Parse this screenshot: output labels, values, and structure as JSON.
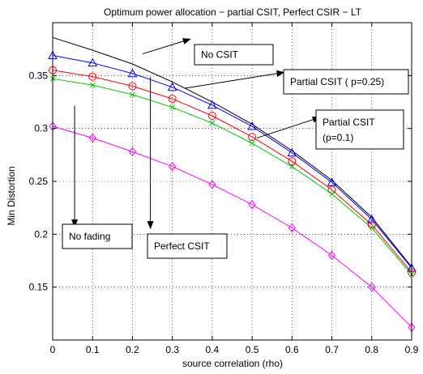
{
  "chart_data": {
    "type": "line",
    "title": "Optimum power allocation − partial CSIT, Perfect CSIR − LT",
    "xlabel": "source correlation (rho)",
    "ylabel": "Min Distortion",
    "xlim": [
      0,
      0.9
    ],
    "ylim": [
      0.1,
      0.4
    ],
    "xticks": [
      0,
      0.1,
      0.2,
      0.3,
      0.4,
      0.5,
      0.6,
      0.7,
      0.8,
      0.9
    ],
    "xtick_labels": [
      "0",
      "0.1",
      "0.2",
      "0.3",
      "0.4",
      "0.5",
      "0.6",
      "0.7",
      "0.8",
      "0.9"
    ],
    "yticks": [
      0.15,
      0.2,
      0.25,
      0.3,
      0.35
    ],
    "ytick_labels": [
      "0.15",
      "0.2",
      "0.25",
      "0.3",
      "0.35"
    ],
    "grid": true,
    "x": [
      0,
      0.1,
      0.2,
      0.3,
      0.4,
      0.5,
      0.6,
      0.7,
      0.8,
      0.9
    ],
    "series": [
      {
        "name": "No CSIT",
        "color": "#000000",
        "marker": "none",
        "values": [
          0.386,
          0.374,
          0.361,
          0.344,
          0.325,
          0.304,
          0.279,
          0.251,
          0.216,
          0.169
        ]
      },
      {
        "name": "Partial CSIT ( p=0.25)",
        "color": "#0000ff",
        "marker": "triangle",
        "values": [
          0.369,
          0.362,
          0.352,
          0.339,
          0.322,
          0.302,
          0.277,
          0.249,
          0.214,
          0.168
        ]
      },
      {
        "name": "Partial CSIT (p=0.1)",
        "color": "#ff0000",
        "marker": "circle",
        "values": [
          0.355,
          0.349,
          0.34,
          0.328,
          0.312,
          0.292,
          0.269,
          0.242,
          0.209,
          0.164
        ]
      },
      {
        "name": "Perfect CSIT",
        "color": "#00cc00",
        "marker": "x",
        "values": [
          0.347,
          0.341,
          0.332,
          0.32,
          0.305,
          0.286,
          0.264,
          0.238,
          0.206,
          0.162
        ]
      },
      {
        "name": "No fading",
        "color": "#ff00ff",
        "marker": "diamond",
        "values": [
          0.302,
          0.291,
          0.278,
          0.264,
          0.247,
          0.228,
          0.206,
          0.18,
          0.15,
          0.112
        ]
      }
    ],
    "annotations": [
      {
        "text": "No CSIT",
        "series": 0,
        "from_x": 0.225,
        "from_y": 0.3705,
        "to_x": 0.345,
        "to_y": 0.3845
      },
      {
        "text": "Partial CSIT ( p=0.25)",
        "series": 1,
        "from_x": 0.332,
        "from_y": 0.338,
        "to_x": 0.58,
        "to_y": 0.353
      },
      {
        "text": "Partial CSIT (p=0.1)",
        "series": 2,
        "from_x": 0.512,
        "from_y": 0.291,
        "to_x": 0.67,
        "to_y": 0.3105
      },
      {
        "text": "No fading",
        "series": 4,
        "from_x": 0.055,
        "from_y": 0.3215,
        "to_x": 0.055,
        "to_y": 0.207
      },
      {
        "text": "Perfect CSIT",
        "series": 3,
        "from_x": 0.245,
        "from_y": 0.3485,
        "to_x": 0.245,
        "to_y": 0.2055
      }
    ]
  }
}
